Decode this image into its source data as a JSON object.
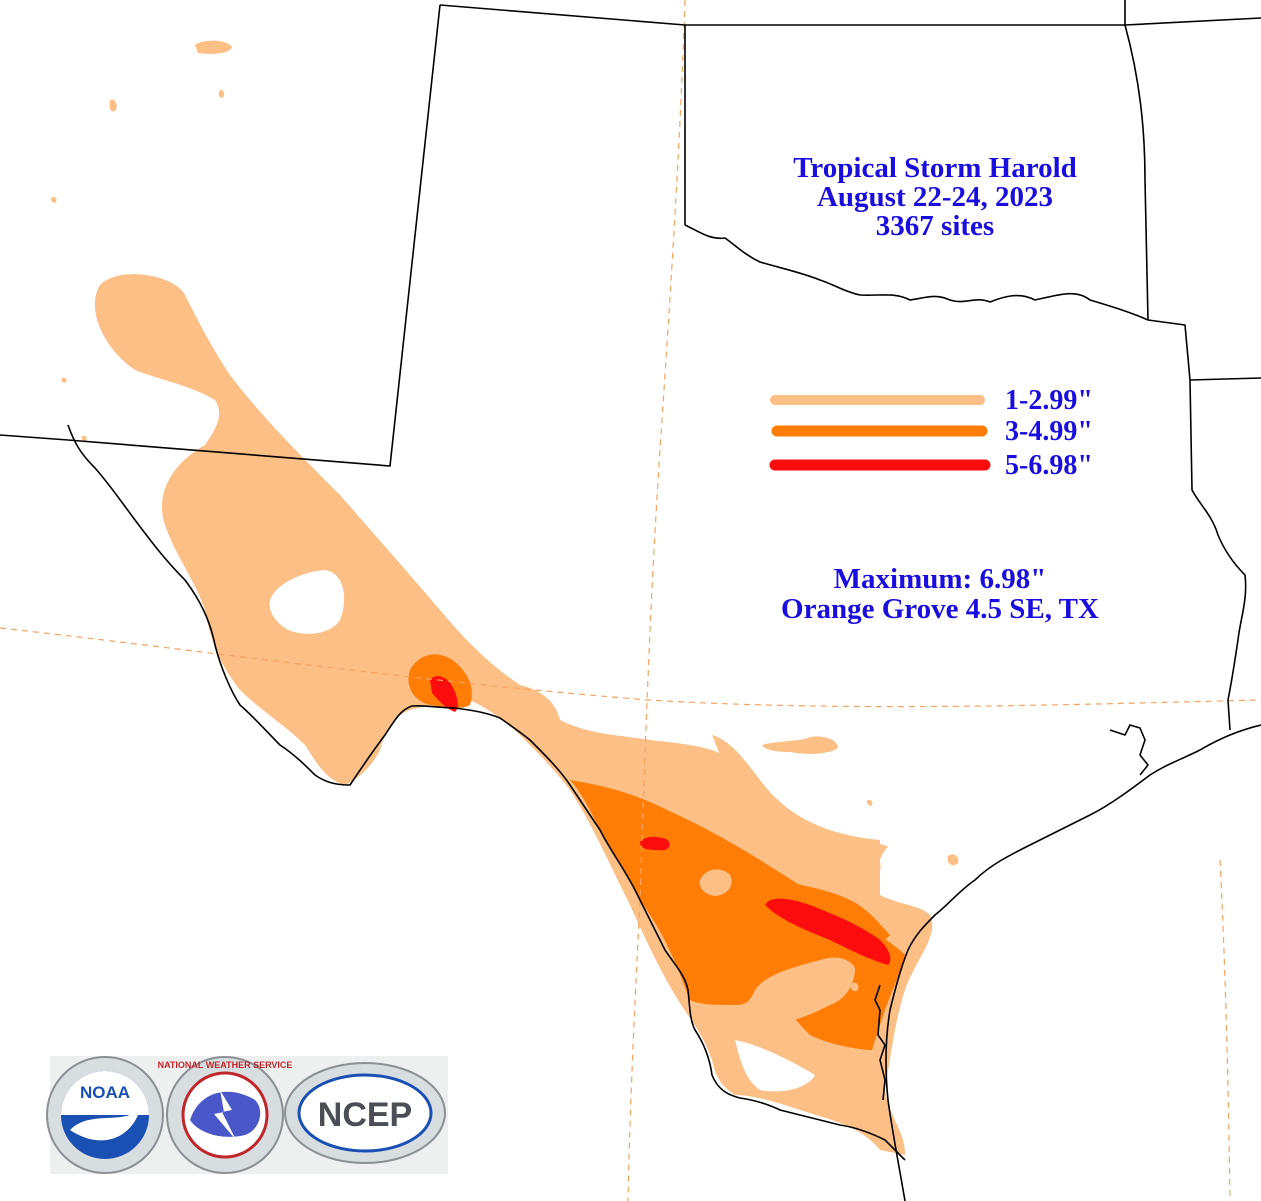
{
  "title": {
    "line1": "Tropical Storm Harold",
    "line2": "August 22-24, 2023",
    "line3": "3367 sites"
  },
  "legend": [
    {
      "label": "1-2.99\"",
      "color": "#fcbf86"
    },
    {
      "label": "3-4.99\"",
      "color": "#fd7d06"
    },
    {
      "label": "5-6.98\"",
      "color": "#fb0d0d"
    }
  ],
  "maximum": {
    "line1": "Maximum:  6.98\"",
    "line2": "Orange Grove 4.5 SE, TX"
  },
  "logos": {
    "noaa": "NOAA",
    "nws": "NATIONAL WEATHER SERVICE",
    "ncep": "NCEP"
  },
  "colors": {
    "text": "#1a0dde",
    "light": "#fcbf86",
    "medium": "#fd7d06",
    "heavy": "#fb0d0d",
    "county_line": "#f4a460"
  }
}
